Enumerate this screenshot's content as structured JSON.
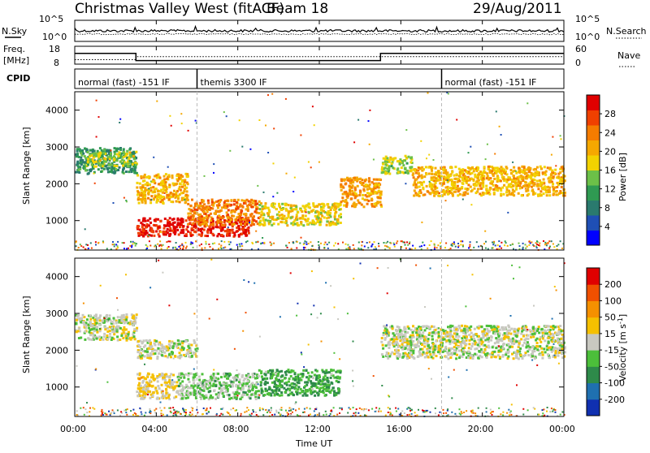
{
  "header": {
    "station": "Christmas Valley West (fitACF)",
    "beam": "Beam 18",
    "date": "29/Aug/2011"
  },
  "aux_labels": {
    "n_sky": "N.Sky",
    "n_search": "N.Search",
    "freq_line1": "Freq.",
    "freq_line2": "[MHz]",
    "nave": "Nave",
    "cpid": "CPID",
    "left_noise_ticks": [
      "10^5",
      "10^0"
    ],
    "right_noise_ticks": [
      "10^5",
      "10^0"
    ],
    "left_freq_ticks": [
      "18",
      "8"
    ],
    "right_freq_ticks": [
      "60",
      "0"
    ]
  },
  "cpid_segments": [
    {
      "label": "normal (fast) -151 IF",
      "start_hour": 0,
      "end_hour": 6.0
    },
    {
      "label": "themis 3300 IF",
      "start_hour": 6.0,
      "end_hour": 18.0
    },
    {
      "label": "normal (fast) -151 IF",
      "start_hour": 18.0,
      "end_hour": 24.0
    }
  ],
  "axes": {
    "ylabel": "Slant Range [km]",
    "xlabel": "Time UT",
    "x_ticks": [
      "00:00",
      "04:00",
      "08:00",
      "12:00",
      "16:00",
      "20:00",
      "00:00"
    ],
    "y_ticks": [
      "1000",
      "2000",
      "3000",
      "4000"
    ],
    "y_tick_values": [
      1000,
      2000,
      3000,
      4000
    ]
  },
  "colorbars": {
    "power": {
      "label": "Power [dB]",
      "tick_labels": [
        "4",
        "8",
        "12",
        "16",
        "20",
        "24",
        "28"
      ],
      "colors": [
        "#0000ff",
        "#1f4fb5",
        "#2a7a6e",
        "#2f9a52",
        "#6cc048",
        "#f2d200",
        "#f5a800",
        "#f57c00",
        "#f04000",
        "#e00000"
      ]
    },
    "velocity": {
      "label": "Velocity [m s",
      "label_sup": "-1",
      "label_end": "]",
      "tick_labels": [
        "200",
        "100",
        "50",
        "15",
        "-15",
        "-50",
        "-100",
        "-200"
      ],
      "colors": [
        "#1030b0",
        "#1f70b0",
        "#2e8a4a",
        "#4cbf3a",
        "#c8c8c0",
        "#f5c000",
        "#f59000",
        "#f05000",
        "#e00000"
      ]
    }
  },
  "chart_data": {
    "type": "heatmap",
    "title": "Christmas Valley West (fitACF)",
    "x_range_hours": [
      0,
      24
    ],
    "y_range_km": [
      200,
      4500
    ],
    "xlabel": "Time UT",
    "ylabel": "Slant Range [km]",
    "panels": [
      {
        "quantity": "Power [dB]",
        "range": [
          0,
          32
        ],
        "regions": [
          {
            "t": [
              0.0,
              3.0
            ],
            "r": [
              2300,
              3000
            ],
            "value": 10
          },
          {
            "t": [
              0.5,
              3.0
            ],
            "r": [
              2500,
              2900
            ],
            "value": 16
          },
          {
            "t": [
              3.0,
              5.5
            ],
            "r": [
              1500,
              2300
            ],
            "value": 20
          },
          {
            "t": [
              3.0,
              8.5
            ],
            "r": [
              600,
              1100
            ],
            "value": 30
          },
          {
            "t": [
              5.5,
              9.0
            ],
            "r": [
              900,
              1600
            ],
            "value": 24
          },
          {
            "t": [
              9.0,
              13.0
            ],
            "r": [
              900,
              1500
            ],
            "value": 18
          },
          {
            "t": [
              13.0,
              15.0
            ],
            "r": [
              1400,
              2200
            ],
            "value": 22
          },
          {
            "t": [
              15.0,
              16.5
            ],
            "r": [
              2300,
              2800
            ],
            "value": 16
          },
          {
            "t": [
              16.5,
              24.0
            ],
            "r": [
              1700,
              2500
            ],
            "value": 20
          }
        ]
      },
      {
        "quantity": "Velocity [m s-1]",
        "range": [
          -250,
          250
        ],
        "regions": [
          {
            "t": [
              0.0,
              3.0
            ],
            "r": [
              2300,
              3000
            ],
            "value": 0
          },
          {
            "t": [
              3.0,
              6.0
            ],
            "r": [
              1800,
              2300
            ],
            "value": 0
          },
          {
            "t": [
              3.0,
              5.0
            ],
            "r": [
              700,
              1400
            ],
            "value": 30
          },
          {
            "t": [
              5.0,
              9.0
            ],
            "r": [
              700,
              1400
            ],
            "value": -40
          },
          {
            "t": [
              9.0,
              13.0
            ],
            "r": [
              800,
              1500
            ],
            "value": -80
          },
          {
            "t": [
              15.0,
              24.0
            ],
            "r": [
              1800,
              2700
            ],
            "value": 0
          }
        ]
      }
    ],
    "aux_traces": {
      "freq_mhz": [
        {
          "start_hour": 0,
          "end_hour": 3.0,
          "value": 14
        },
        {
          "start_hour": 3.0,
          "end_hour": 15.0,
          "value": 10
        },
        {
          "start_hour": 15.0,
          "end_hour": 24,
          "value": 14
        }
      ],
      "nave": [
        {
          "start_hour": 0,
          "end_hour": 3.0,
          "value": 15
        },
        {
          "start_hour": 3.0,
          "end_hour": 24,
          "value": 25
        }
      ]
    }
  }
}
